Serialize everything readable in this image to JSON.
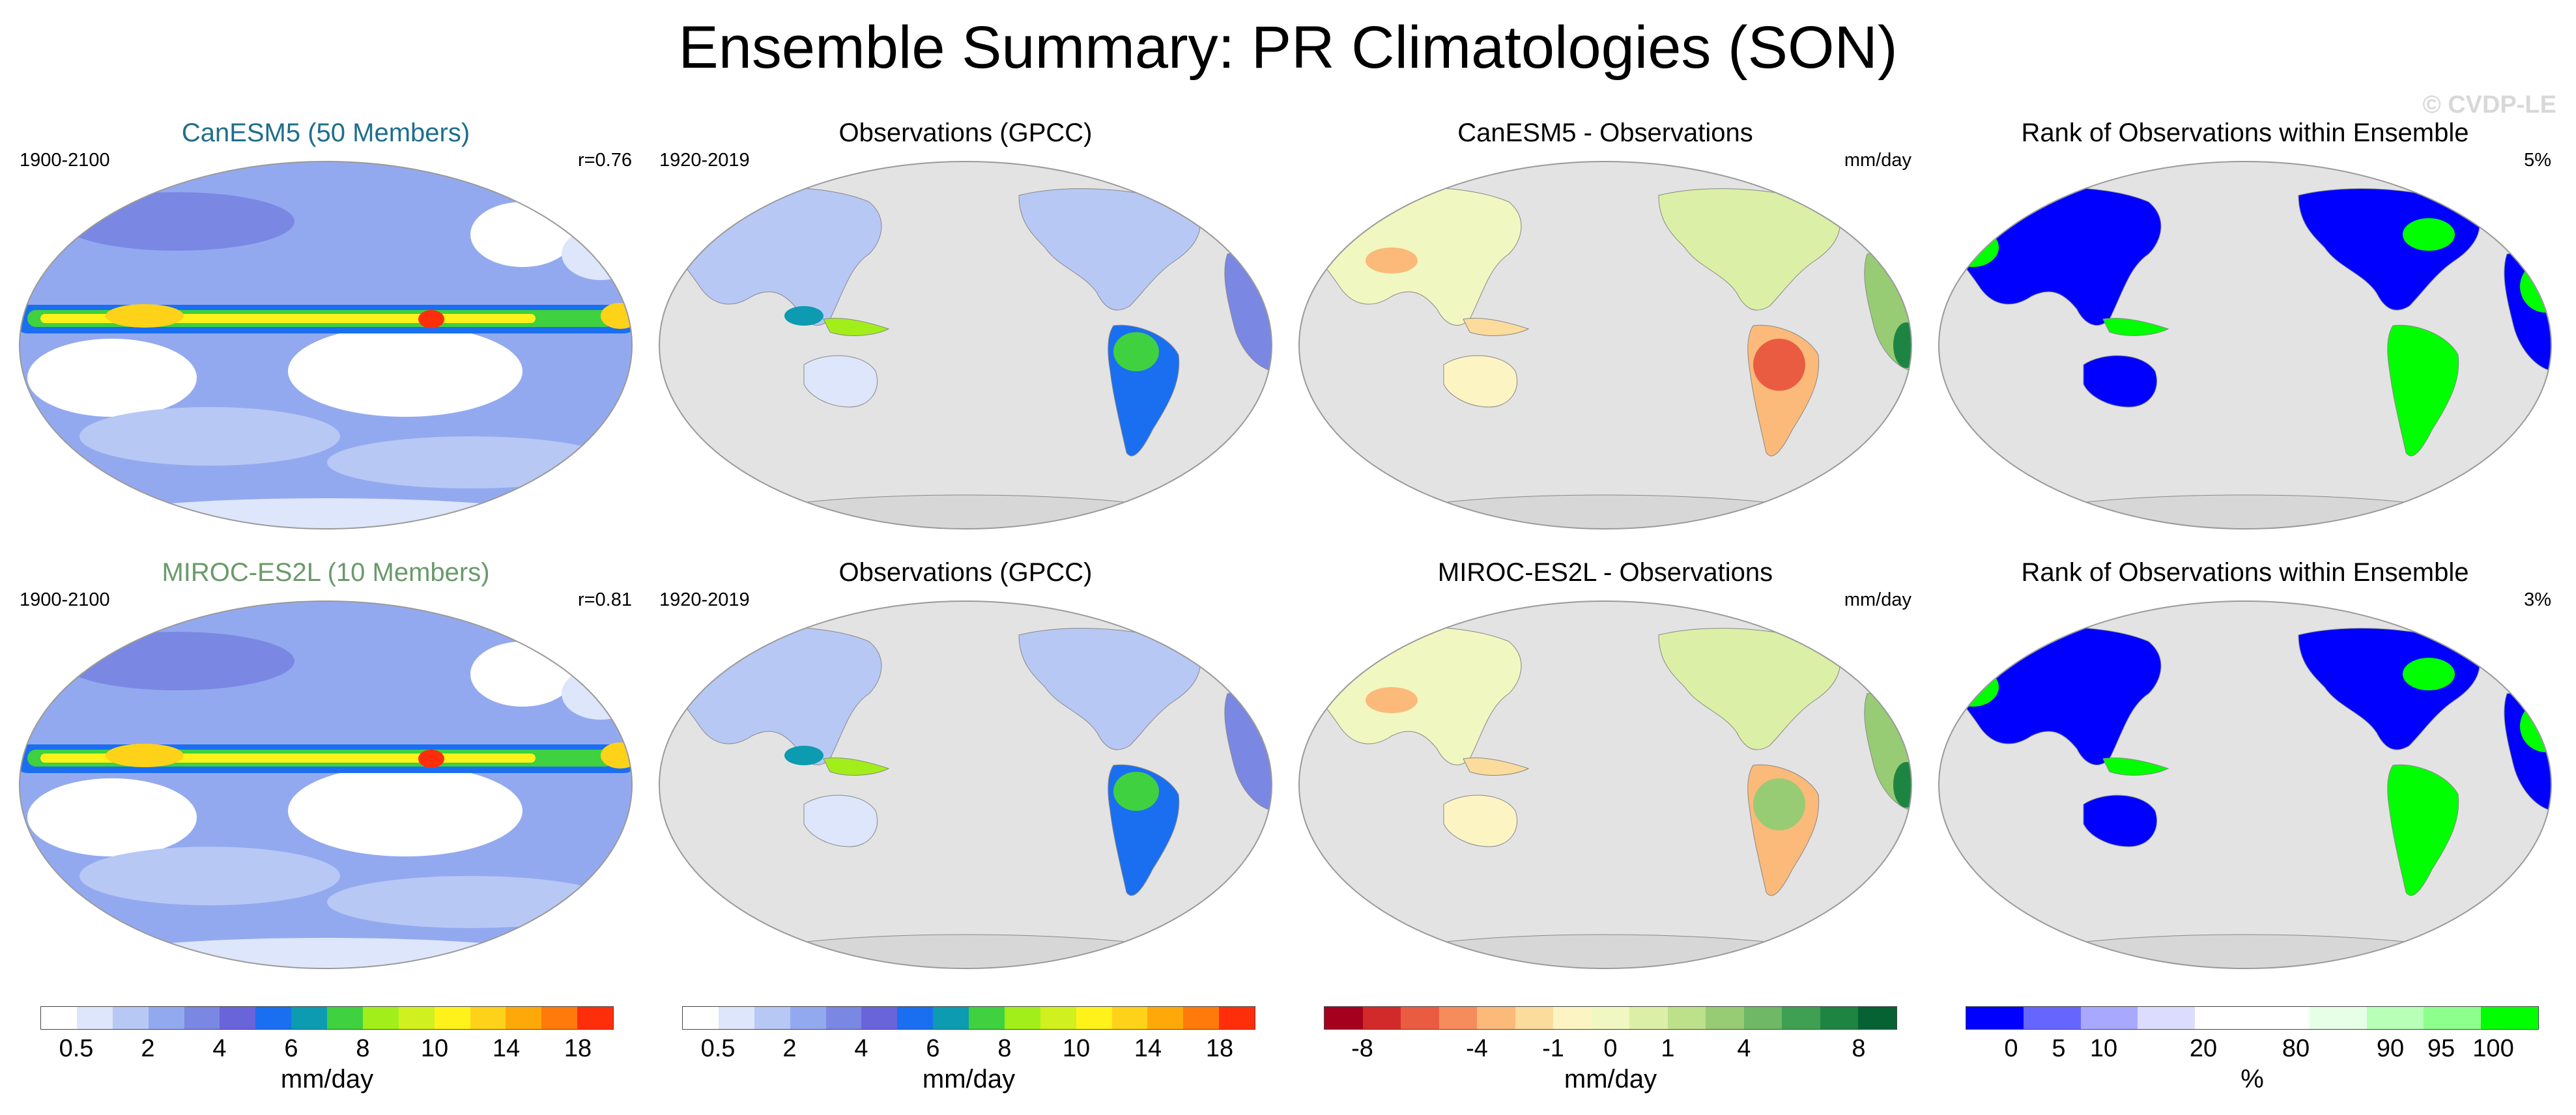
{
  "title": "Ensemble Summary: PR Climatologies (SON)",
  "credit": "© CVDP-LE",
  "colors": {
    "canesm_title": "#1f6e8c",
    "miroc_title": "#6a9a6a",
    "land": "#d7d7d7",
    "ocean_bg": "#e3e3e3",
    "precip_scale": [
      "#ffffff",
      "#dde6fa",
      "#b8c8f5",
      "#93a9ef",
      "#7a88e3",
      "#6a64db",
      "#1a6ff0",
      "#0c9bb0",
      "#3fd13f",
      "#a2ee1a",
      "#d0f020",
      "#fff21a",
      "#ffd21a",
      "#ffa80a",
      "#ff7a0a",
      "#ff2e0a"
    ],
    "diff_scale": [
      "#a5001e",
      "#d22a2a",
      "#ea5c42",
      "#f68c5c",
      "#fbb97a",
      "#fcdc9c",
      "#fdf4c4",
      "#f1f7c0",
      "#dcefa6",
      "#bde08a",
      "#98cc74",
      "#6fb865",
      "#3f9f52",
      "#1e8442",
      "#066233"
    ],
    "rank_scale": [
      "#0000ff",
      "#6666ff",
      "#a8a8ff",
      "#dcdcff",
      "#ffffff",
      "#ffffff",
      "#e6ffe6",
      "#b8ffb8",
      "#8cff8c",
      "#00ff00"
    ]
  },
  "panels": [
    {
      "title": "CanESM5 (50 Members)",
      "left": "1900-2100",
      "right": "r=0.76",
      "kind": "model"
    },
    {
      "title": "Observations (GPCC)",
      "left": "1920-2019",
      "right": "",
      "kind": "obs"
    },
    {
      "title": "CanESM5 - Observations",
      "left": "",
      "right": "mm/day",
      "kind": "diff"
    },
    {
      "title": "Rank of Observations within Ensemble",
      "left": "",
      "right": "5%",
      "kind": "rank"
    },
    {
      "title": "MIROC-ES2L (10 Members)",
      "left": "1900-2100",
      "right": "r=0.81",
      "kind": "model"
    },
    {
      "title": "Observations (GPCC)",
      "left": "1920-2019",
      "right": "",
      "kind": "obs"
    },
    {
      "title": "MIROC-ES2L - Observations",
      "left": "",
      "right": "mm/day",
      "kind": "diff"
    },
    {
      "title": "Rank of Observations within Ensemble",
      "left": "",
      "right": "3%",
      "kind": "rank"
    }
  ],
  "colorbars": [
    {
      "ticks": [
        "0.5",
        "2",
        "4",
        "6",
        "8",
        "10",
        "14",
        "18"
      ],
      "unit": "mm/day"
    },
    {
      "ticks": [
        "0.5",
        "2",
        "4",
        "6",
        "8",
        "10",
        "14",
        "18"
      ],
      "unit": "mm/day"
    },
    {
      "ticks": [
        "-8",
        "-4",
        "-1",
        "0",
        "1",
        "4",
        "8"
      ],
      "unit": "mm/day"
    },
    {
      "ticks": [
        "0",
        "5",
        "10",
        "20",
        "80",
        "90",
        "95",
        "100"
      ],
      "unit": "%"
    }
  ],
  "chart_data": {
    "type": "heatmap",
    "title": "Ensemble Summary: PR Climatologies (SON)",
    "season": "SON",
    "variable": "PR",
    "units": "mm/day",
    "precip_levels": [
      0.5,
      1,
      2,
      3,
      4,
      5,
      6,
      7,
      8,
      9,
      10,
      12,
      14,
      16,
      18
    ],
    "difference_levels": [
      -8,
      -6,
      -4,
      -2,
      -1,
      -0.5,
      0,
      0.5,
      1,
      2,
      4,
      6,
      8
    ],
    "rank_levels_percent": [
      0,
      5,
      10,
      20,
      80,
      90,
      95,
      100
    ],
    "rows": [
      {
        "model": "CanESM5",
        "members": 50,
        "period": "1900-2100",
        "pattern_correlation": 0.76,
        "observations": "GPCC",
        "obs_period": "1920-2019",
        "rank_stat_percent": 5
      },
      {
        "model": "MIROC-ES2L",
        "members": 10,
        "period": "1900-2100",
        "pattern_correlation": 0.81,
        "observations": "GPCC",
        "obs_period": "1920-2019",
        "rank_stat_percent": 3
      }
    ]
  }
}
